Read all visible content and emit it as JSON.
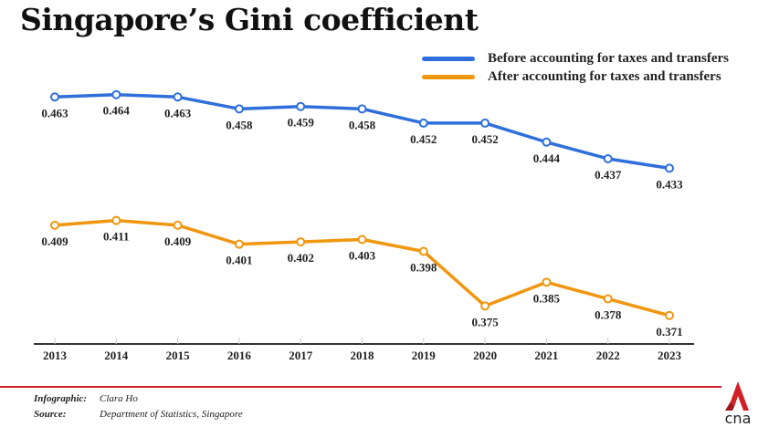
{
  "title": "Singapore’s Gini coefficient",
  "chart_data": {
    "type": "line",
    "title": "Singapore’s Gini coefficient",
    "categories": [
      "2013",
      "2014",
      "2015",
      "2016",
      "2017",
      "2018",
      "2019",
      "2020",
      "2021",
      "2022",
      "2023"
    ],
    "series": [
      {
        "name": "Before accounting for taxes and transfers",
        "color": "#2f6fdb",
        "values": [
          0.463,
          0.464,
          0.463,
          0.458,
          0.459,
          0.458,
          0.452,
          0.452,
          0.444,
          0.437,
          0.433
        ]
      },
      {
        "name": "After accounting for taxes and transfers",
        "color": "#f0960f",
        "values": [
          0.409,
          0.411,
          0.409,
          0.401,
          0.402,
          0.403,
          0.398,
          0.375,
          0.385,
          0.378,
          0.371
        ]
      }
    ],
    "xlabel": "",
    "ylabel": "",
    "ylim": [
      0.359,
      0.5
    ],
    "grid": false,
    "legend": "top-right"
  },
  "footer": {
    "infographic_label": "Infographic:",
    "infographic_value": "Clara Ho",
    "source_label": "Source:",
    "source_value": "Department of Statistics, Singapore"
  },
  "logo": {
    "text": "cna",
    "color": "#d32026"
  }
}
